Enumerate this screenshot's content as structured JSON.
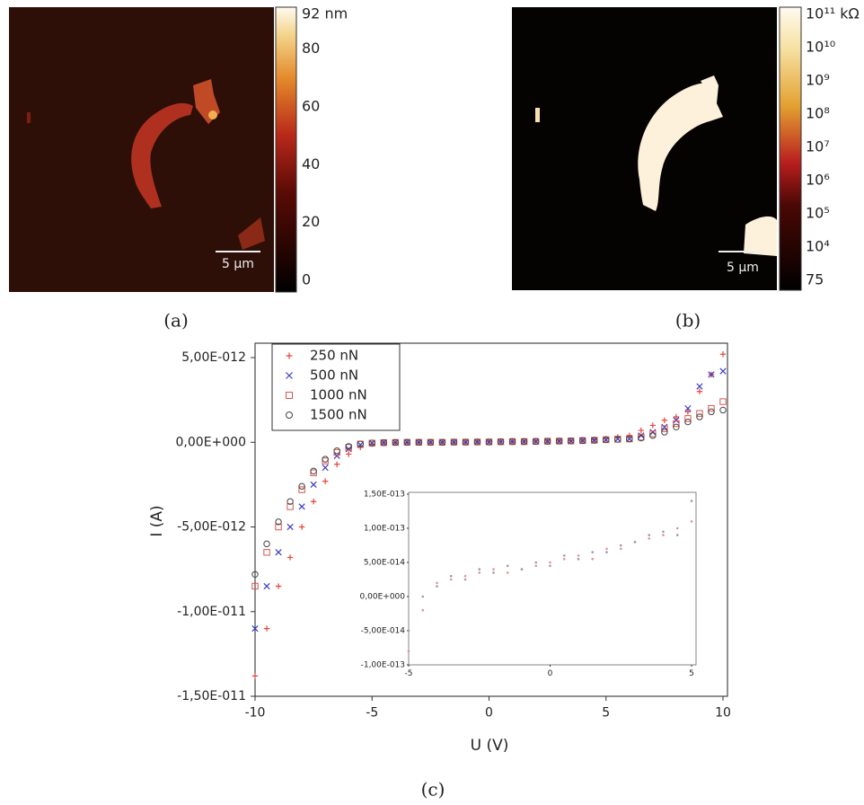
{
  "panel_labels": [
    "(a)",
    "(b)",
    "(c)"
  ],
  "images": [
    {
      "scale_bar": "5 µm",
      "colorbar": {
        "lim": [
          0,
          92
        ],
        "ticks": [
          {
            "value": 92,
            "label": "92 nm"
          },
          80,
          60,
          40,
          20,
          0
        ]
      }
    },
    {
      "scale_bar": "5 µm",
      "colorbar": {
        "ticks": [
          {
            "value": 100000000000,
            "label": "10¹¹ kΩ"
          },
          {
            "value": 10000000000,
            "label": "10¹⁰"
          },
          {
            "value": 1000000000,
            "label": "10⁹"
          },
          {
            "value": 100000000,
            "label": "10⁸"
          },
          {
            "value": 10000000,
            "label": "10⁷"
          },
          {
            "value": 1000000,
            "label": "10⁶"
          },
          {
            "value": 100000,
            "label": "10⁵"
          },
          {
            "value": 10000,
            "label": "10⁴"
          },
          75
        ]
      }
    }
  ],
  "chart_data": [
    {
      "type": "scatter",
      "xlabel": "U (V)",
      "ylabel": "I (A)",
      "legend": "upper left",
      "x": [
        -10,
        -9.5,
        -9,
        -8.5,
        -8,
        -7.5,
        -7,
        -6.5,
        -6,
        -5.5,
        -5,
        -4.5,
        -4,
        -3.5,
        -3,
        -2.5,
        -2,
        -1.5,
        -1,
        -0.5,
        0,
        0.5,
        1,
        1.5,
        2,
        2.5,
        3,
        3.5,
        4,
        4.5,
        5,
        5.5,
        6,
        6.5,
        7,
        7.5,
        8,
        8.5,
        9,
        9.5,
        10
      ],
      "xlim": [
        -10,
        10
      ],
      "xticks": [
        -10,
        -5,
        0,
        5,
        10
      ],
      "ylim": [
        -1.5e-11,
        5.85e-12
      ],
      "yticks": [
        {
          "value": 5e-12,
          "label": "5,00E-012"
        },
        {
          "value": 0,
          "label": "0,00E+000"
        },
        {
          "value": -5e-12,
          "label": "-5,00E-012"
        },
        {
          "value": -1e-11,
          "label": "-1,00E-011"
        },
        {
          "value": -1.5e-11,
          "label": "-1,50E-011"
        }
      ],
      "series": [
        {
          "name": "250 nN",
          "color": "#e5453a",
          "marker": "plus",
          "values": [
            -1.38e-11,
            -1.1e-11,
            -8.5e-12,
            -6.8e-12,
            -5e-12,
            -3.5e-12,
            -2.3e-12,
            -1.3e-12,
            -7e-13,
            -3e-13,
            -1e-13,
            -3e-14,
            -2e-14,
            -1e-14,
            0,
            0,
            0,
            1e-14,
            1e-14,
            2e-14,
            3e-14,
            3e-14,
            4e-14,
            5e-14,
            6e-14,
            7e-14,
            8e-14,
            9e-14,
            1.1e-13,
            1.4e-13,
            2e-13,
            3e-13,
            4e-13,
            7e-13,
            1e-12,
            1.3e-12,
            1.5e-12,
            1.8e-12,
            3e-12,
            4e-12,
            5.2e-12
          ]
        },
        {
          "name": "500 nN",
          "color": "#3b3bc8",
          "marker": "x",
          "values": [
            -1.1e-11,
            -8.5e-12,
            -6.5e-12,
            -5e-12,
            -3.8e-12,
            -2.5e-12,
            -1.5e-12,
            -8e-13,
            -4e-13,
            -1.5e-13,
            -5e-14,
            -2e-14,
            -1e-14,
            0,
            0,
            0,
            0,
            1e-14,
            1e-14,
            2e-14,
            2e-14,
            3e-14,
            4e-14,
            4e-14,
            5e-14,
            6e-14,
            7e-14,
            8e-14,
            1e-13,
            1.2e-13,
            1.5e-13,
            2e-13,
            2e-13,
            4e-13,
            6e-13,
            9e-13,
            1.3e-12,
            2e-12,
            3.3e-12,
            4e-12,
            4.2e-12
          ]
        },
        {
          "name": "1000 nN",
          "color": "#d9534f",
          "marker": "square",
          "values": [
            -8.5e-12,
            -6.5e-12,
            -5e-12,
            -3.8e-12,
            -2.8e-12,
            -1.8e-12,
            -1.1e-12,
            -6e-13,
            -3e-13,
            -1e-13,
            -5e-14,
            -2e-14,
            -1e-14,
            0,
            0,
            0,
            0,
            1e-14,
            1e-14,
            2e-14,
            2e-14,
            3e-14,
            4e-14,
            4e-14,
            5e-14,
            6e-14,
            7e-14,
            8e-14,
            1e-13,
            1.2e-13,
            1.5e-13,
            1.8e-13,
            2e-13,
            3e-13,
            5e-13,
            8e-13,
            1.1e-12,
            1.4e-12,
            1.7e-12,
            2e-12,
            2.4e-12
          ]
        },
        {
          "name": "1500 nN",
          "color": "#444444",
          "marker": "circle",
          "values": [
            -7.8e-12,
            -6e-12,
            -4.7e-12,
            -3.5e-12,
            -2.6e-12,
            -1.7e-12,
            -1e-12,
            -5e-13,
            -2.5e-13,
            -1e-13,
            -4e-14,
            -2e-14,
            -1e-14,
            0,
            0,
            0,
            0,
            1e-14,
            1e-14,
            2e-14,
            2e-14,
            3e-14,
            4e-14,
            4e-14,
            5e-14,
            6e-14,
            7e-14,
            8e-14,
            1e-13,
            1.2e-13,
            1.5e-13,
            1.7e-13,
            2e-13,
            2.5e-13,
            4e-13,
            6e-13,
            9e-13,
            1.2e-12,
            1.5e-12,
            1.8e-12,
            1.9e-12
          ]
        }
      ]
    },
    {
      "type": "scatter",
      "x": [
        -5,
        -4.5,
        -4,
        -3.5,
        -3,
        -2.5,
        -2,
        -1.5,
        -1,
        -0.5,
        0,
        0.5,
        1,
        1.5,
        2,
        2.5,
        3,
        3.5,
        4,
        4.5,
        5
      ],
      "xlim": [
        -5,
        5
      ],
      "xticks": [
        -5,
        0,
        5
      ],
      "ylim": [
        -1e-13,
        1.5e-13
      ],
      "yticks": [
        {
          "value": 1.5e-13,
          "label": "1,50E-013"
        },
        {
          "value": 1e-13,
          "label": "1,00E-013"
        },
        {
          "value": 5e-14,
          "label": "5,00E-014"
        },
        {
          "value": 0,
          "label": "0,00E+000"
        },
        {
          "value": -5e-14,
          "label": "-5,00E-014"
        },
        {
          "value": -1e-13,
          "label": "-1,00E-013"
        }
      ],
      "series": [
        {
          "color": "#e89090",
          "marker": "dot",
          "values": [
            -8e-14,
            -2e-14,
            2e-14,
            2.5e-14,
            3e-14,
            3.5e-14,
            4e-14,
            3.5e-14,
            4e-14,
            4.5e-14,
            5e-14,
            5.5e-14,
            6e-14,
            5.5e-14,
            7e-14,
            7e-14,
            8e-14,
            8.5e-14,
            9e-14,
            1e-13,
            1.1e-13
          ]
        },
        {
          "color": "#9a9ab0",
          "marker": "dot",
          "values": [
            -5e-14,
            0,
            1.5e-14,
            3e-14,
            2.5e-14,
            4e-14,
            3.5e-14,
            4.5e-14,
            4e-14,
            5e-14,
            4.5e-14,
            6e-14,
            5.5e-14,
            6.5e-14,
            6.5e-14,
            7.5e-14,
            8e-14,
            9e-14,
            9.5e-14,
            9e-14,
            1.4e-13
          ]
        }
      ]
    }
  ]
}
